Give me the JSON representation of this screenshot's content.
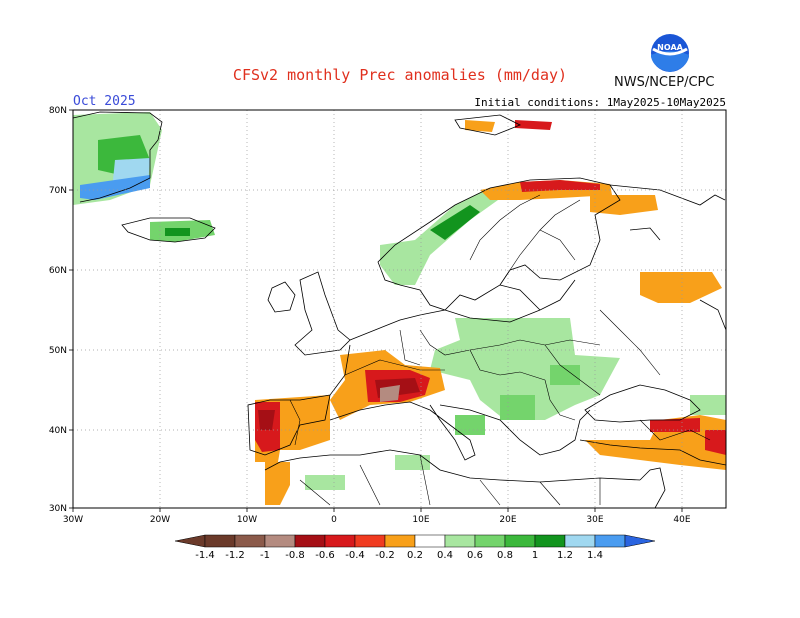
{
  "header": {
    "title": "CFSv2 monthly Prec anomalies (mm/day)",
    "month": "Oct 2025",
    "initial_conditions": "Initial conditions: 1May2025-10May2025",
    "agency": "NWS/NCEP/CPC",
    "logo_text": "NOAA"
  },
  "axes": {
    "lon_labels": [
      "30W",
      "20W",
      "10W",
      "0",
      "10E",
      "20E",
      "30E",
      "40E"
    ],
    "lat_labels": [
      "80N",
      "70N",
      "60N",
      "50N",
      "40N",
      "30N"
    ],
    "lon_range": [
      -30,
      45
    ],
    "lat_range": [
      30,
      80
    ],
    "grid": true
  },
  "colorbar": {
    "labels": [
      "-1.4",
      "-1.2",
      "-1",
      "-0.8",
      "-0.6",
      "-0.4",
      "-0.2",
      "0.2",
      "0.4",
      "0.6",
      "0.8",
      "1",
      "1.2",
      "1.4"
    ],
    "colors": {
      "brown_dark": "#6b3a2a",
      "brown": "#8b5a4a",
      "rose_brown": "#b48b80",
      "dark_red": "#a50f15",
      "red": "#d7191c",
      "red_orange": "#f03b20",
      "orange": "#f8a01a",
      "light_green": "#a8e6a0",
      "green_light": "#74d46c",
      "green": "#3cb83c",
      "dark_green": "#12941e",
      "light_blue": "#a0d8f0",
      "blue": "#4a9cf0",
      "deep_blue": "#2a64e0"
    }
  }
}
